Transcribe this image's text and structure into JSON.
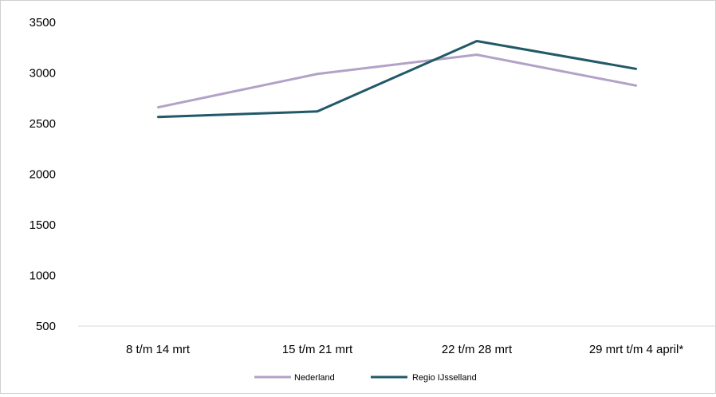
{
  "chart_data": {
    "type": "line",
    "categories": [
      "8 t/m 14 mrt",
      "15 t/m 21 mrt",
      "22 t/m 28 mrt",
      "29 mrt t/m 4 april*"
    ],
    "series": [
      {
        "name": "Nederland",
        "values": [
          2660,
          2990,
          3180,
          2875
        ],
        "color": "#b3a2c7"
      },
      {
        "name": "Regio IJsselland",
        "values": [
          2565,
          2620,
          3315,
          3040
        ],
        "color": "#215968"
      }
    ],
    "y_ticks": [
      "500",
      "1000",
      "1500",
      "2000",
      "2500",
      "3000",
      "3500"
    ],
    "ylim": [
      500,
      3500
    ],
    "grid": false,
    "legend_position": "bottom"
  }
}
